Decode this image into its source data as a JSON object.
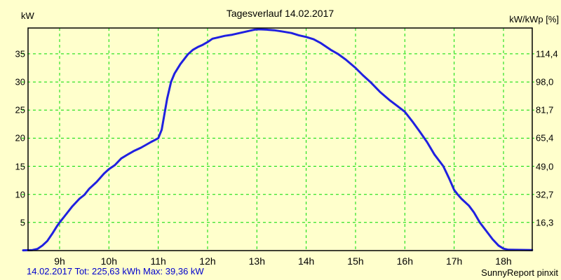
{
  "header": {
    "title": "Tagesverlauf 14.02.2017"
  },
  "footer": {
    "summary": "14.02.2017 Tot: 225,63 kWh Max: 39,36 kW",
    "brand": "SunnyReport pinxit"
  },
  "chart_data": {
    "type": "line",
    "title": "Tagesverlauf 14.02.2017",
    "ylabel_left": "kW",
    "ylabel_right": "kW/kWp [%]",
    "date": "14.02.2017",
    "total_kwh_label": "225,63",
    "max_kw_label": "39,36",
    "background_color": "#ffffcc",
    "grid_color": "#00dc00",
    "axis_color": "#000000",
    "line_color": "#2020e0",
    "summary_text_color": "#0000cc",
    "grid": true,
    "legend": "none",
    "ylim": [
      0,
      39.6
    ],
    "xlim_hours": [
      8.35,
      18.58
    ],
    "x_ticks": [
      {
        "hour": 9,
        "label": "9h"
      },
      {
        "hour": 10,
        "label": "10h"
      },
      {
        "hour": 11,
        "label": "11h"
      },
      {
        "hour": 12,
        "label": "12h"
      },
      {
        "hour": 13,
        "label": "13h"
      },
      {
        "hour": 14,
        "label": "14h"
      },
      {
        "hour": 15,
        "label": "15h"
      },
      {
        "hour": 16,
        "label": "16h"
      },
      {
        "hour": 17,
        "label": "17h"
      },
      {
        "hour": 18,
        "label": "18h"
      }
    ],
    "y_ticks_left": [
      {
        "value": 35,
        "label": "35"
      },
      {
        "value": 30,
        "label": "30"
      },
      {
        "value": 25,
        "label": "25"
      },
      {
        "value": 20,
        "label": "20"
      },
      {
        "value": 15,
        "label": "15"
      },
      {
        "value": 10,
        "label": "10"
      },
      {
        "value": 5,
        "label": "5"
      }
    ],
    "y_ticks_right": [
      {
        "value": 35,
        "label": "114,4"
      },
      {
        "value": 30,
        "label": "98,0"
      },
      {
        "value": 25,
        "label": "81,7"
      },
      {
        "value": 20,
        "label": "65,4"
      },
      {
        "value": 15,
        "label": "49,0"
      },
      {
        "value": 10,
        "label": "32,7"
      },
      {
        "value": 5,
        "label": "16,3"
      }
    ],
    "series": [
      {
        "name": "power-kw",
        "color": "#2020e0",
        "points": [
          [
            8.26,
            0.05
          ],
          [
            8.45,
            0.1
          ],
          [
            8.55,
            0.3
          ],
          [
            8.65,
            0.9
          ],
          [
            8.75,
            1.7
          ],
          [
            8.85,
            3.0
          ],
          [
            8.95,
            4.4
          ],
          [
            9.0,
            5.0
          ],
          [
            9.1,
            6.1
          ],
          [
            9.25,
            7.8
          ],
          [
            9.4,
            9.2
          ],
          [
            9.5,
            9.9
          ],
          [
            9.6,
            11.0
          ],
          [
            9.75,
            12.2
          ],
          [
            9.9,
            13.7
          ],
          [
            10.0,
            14.5
          ],
          [
            10.12,
            15.2
          ],
          [
            10.25,
            16.4
          ],
          [
            10.4,
            17.2
          ],
          [
            10.5,
            17.7
          ],
          [
            10.65,
            18.3
          ],
          [
            10.75,
            18.8
          ],
          [
            10.85,
            19.3
          ],
          [
            11.0,
            20.0
          ],
          [
            11.07,
            21.5
          ],
          [
            11.12,
            24.0
          ],
          [
            11.18,
            27.0
          ],
          [
            11.26,
            30.0
          ],
          [
            11.33,
            31.5
          ],
          [
            11.45,
            33.2
          ],
          [
            11.6,
            34.9
          ],
          [
            11.7,
            35.7
          ],
          [
            11.8,
            36.2
          ],
          [
            11.9,
            36.6
          ],
          [
            12.0,
            37.1
          ],
          [
            12.1,
            37.7
          ],
          [
            12.2,
            37.9
          ],
          [
            12.35,
            38.2
          ],
          [
            12.5,
            38.4
          ],
          [
            12.65,
            38.7
          ],
          [
            12.8,
            39.0
          ],
          [
            12.95,
            39.3
          ],
          [
            13.05,
            39.36
          ],
          [
            13.2,
            39.3
          ],
          [
            13.35,
            39.2
          ],
          [
            13.5,
            39.0
          ],
          [
            13.7,
            38.7
          ],
          [
            13.85,
            38.3
          ],
          [
            14.0,
            38.0
          ],
          [
            14.15,
            37.6
          ],
          [
            14.3,
            36.9
          ],
          [
            14.5,
            35.7
          ],
          [
            14.64,
            35.0
          ],
          [
            14.8,
            34.0
          ],
          [
            15.0,
            32.5
          ],
          [
            15.15,
            31.2
          ],
          [
            15.3,
            30.0
          ],
          [
            15.5,
            28.2
          ],
          [
            15.7,
            26.7
          ],
          [
            15.85,
            25.7
          ],
          [
            16.0,
            24.7
          ],
          [
            16.15,
            23.0
          ],
          [
            16.3,
            21.2
          ],
          [
            16.45,
            19.3
          ],
          [
            16.6,
            17.1
          ],
          [
            16.78,
            15.0
          ],
          [
            16.9,
            12.8
          ],
          [
            17.0,
            10.8
          ],
          [
            17.07,
            10.0
          ],
          [
            17.15,
            9.2
          ],
          [
            17.3,
            8.0
          ],
          [
            17.4,
            6.8
          ],
          [
            17.52,
            5.0
          ],
          [
            17.65,
            3.5
          ],
          [
            17.78,
            2.0
          ],
          [
            17.9,
            0.9
          ],
          [
            18.0,
            0.35
          ],
          [
            18.1,
            0.15
          ],
          [
            18.58,
            0.1
          ]
        ]
      }
    ]
  }
}
